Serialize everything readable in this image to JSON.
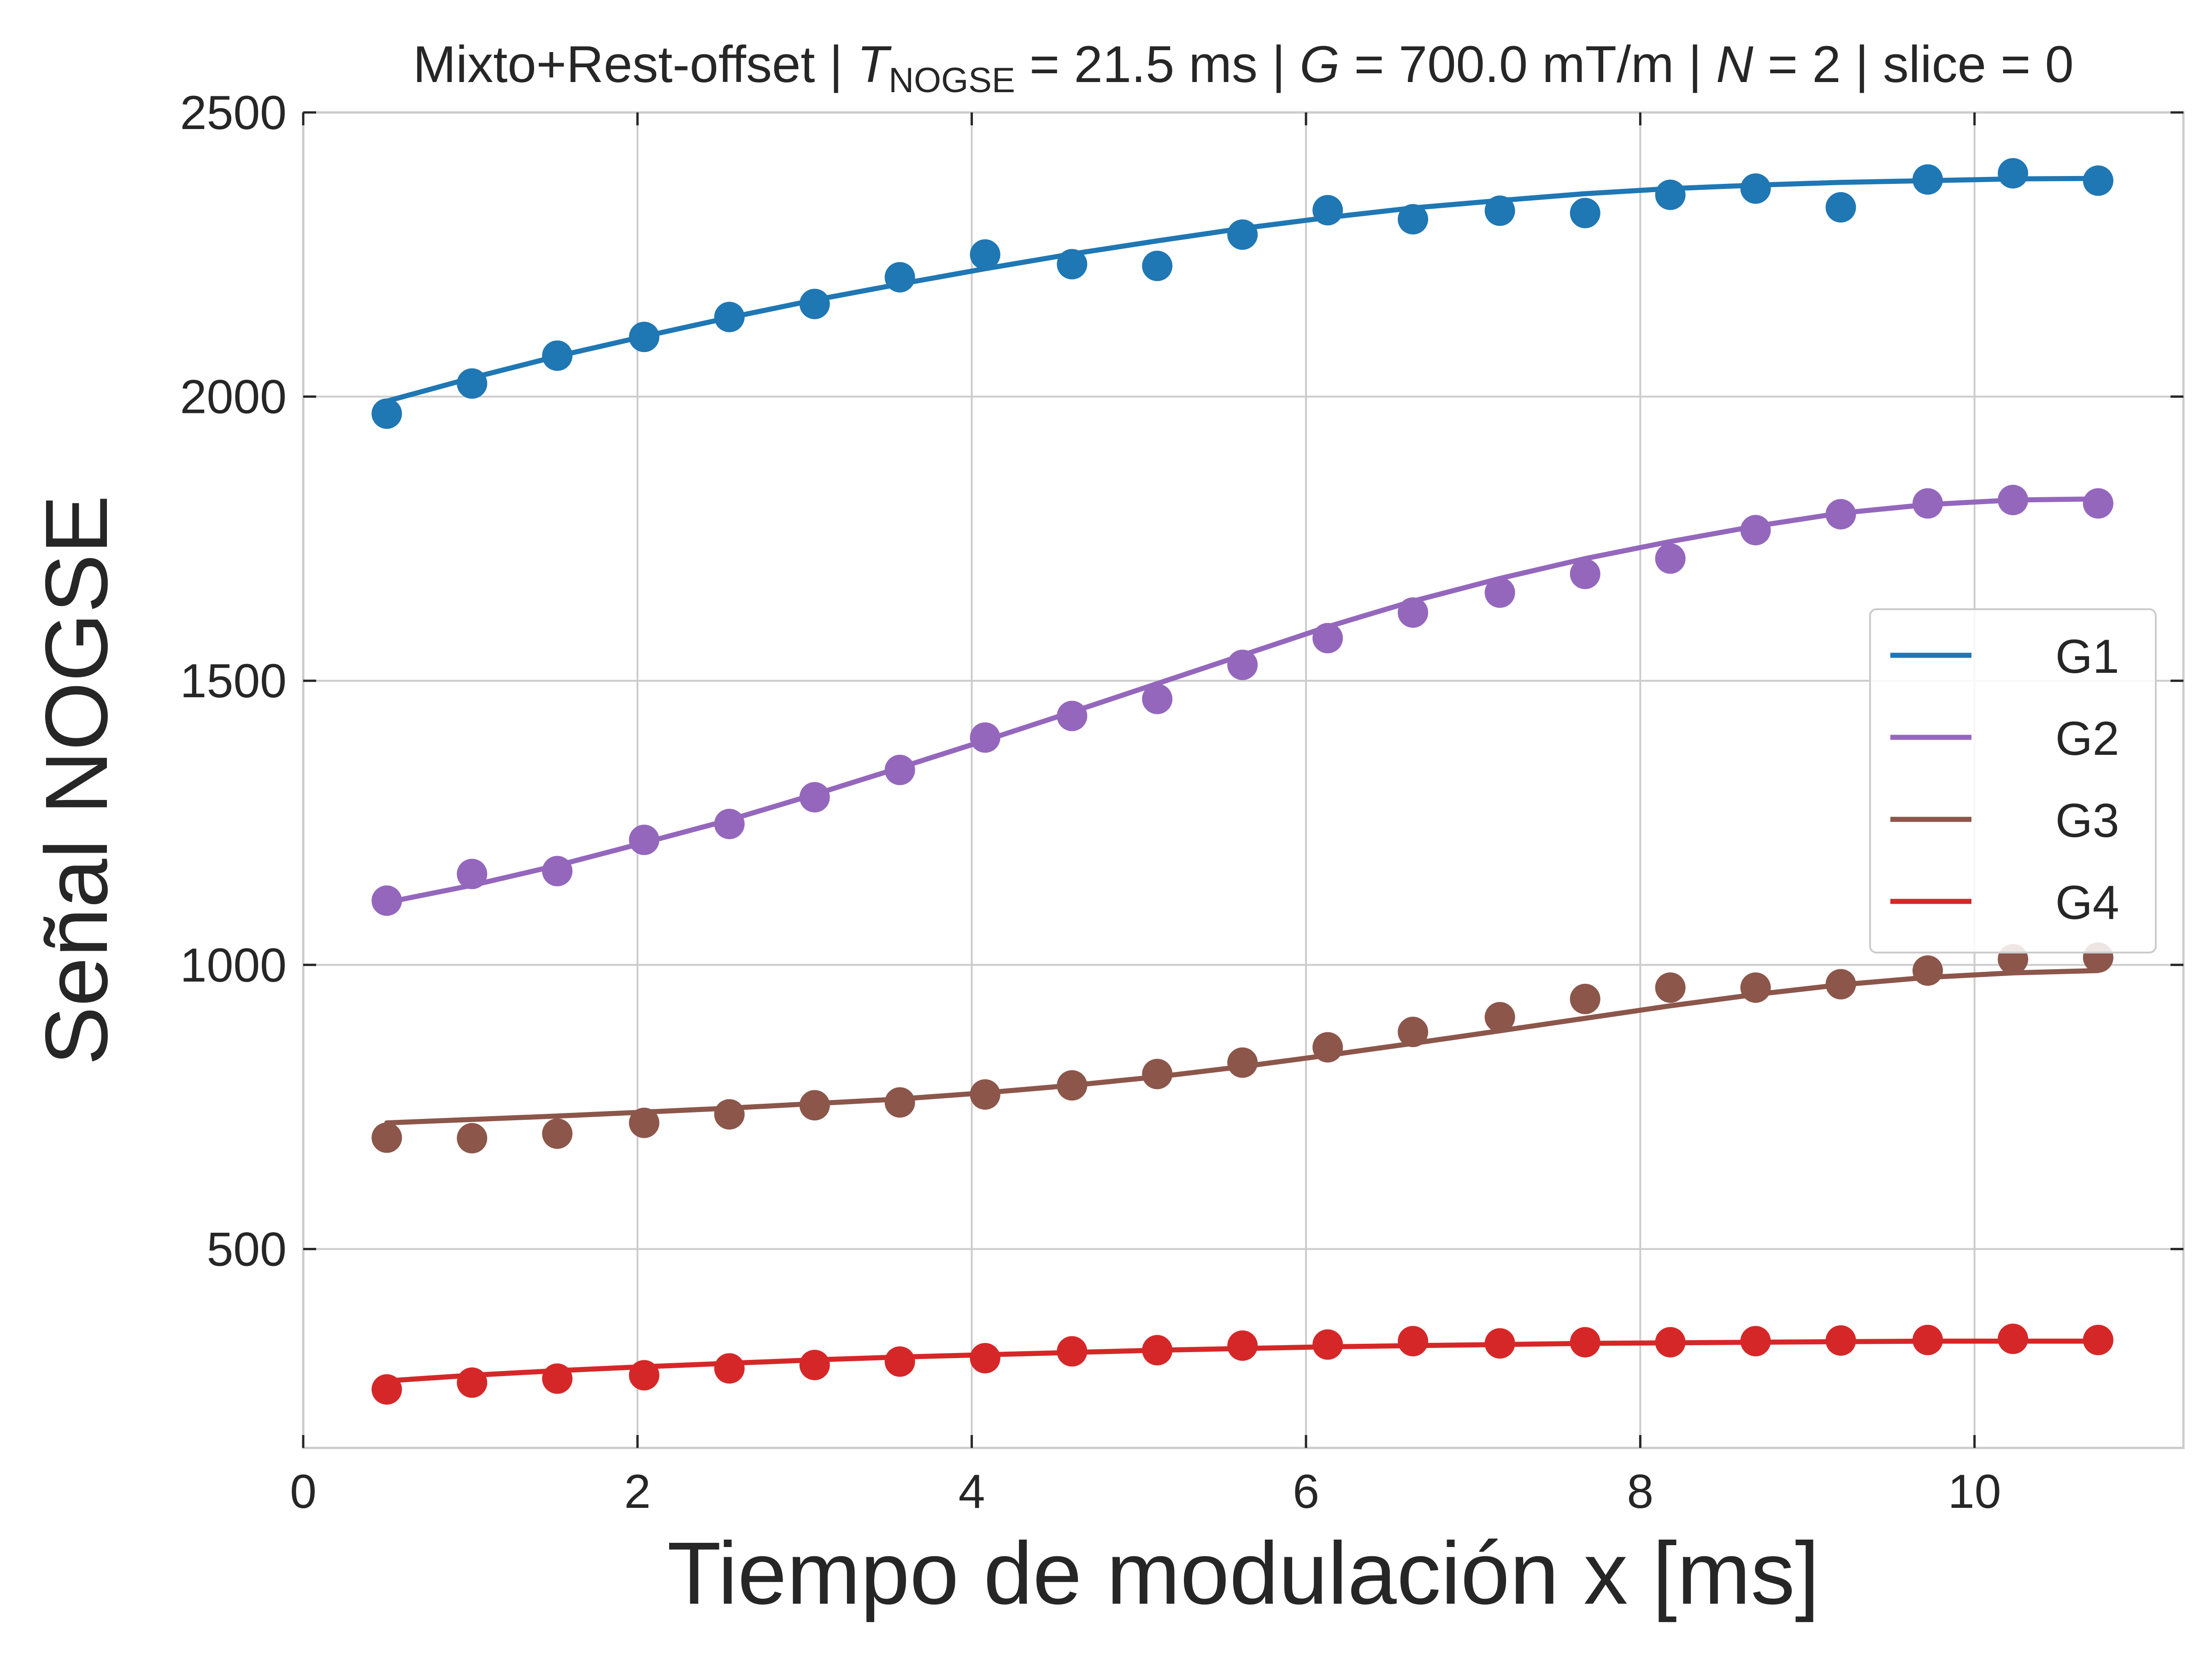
{
  "chart_data": {
    "type": "scatter",
    "title": {
      "prefix": "Mixto+Rest-offset | ",
      "t_symbol": "T",
      "t_subscript": "NOGSE",
      "t_value": " = 21.5 ms | ",
      "g_symbol": "G",
      "g_value": " = 700.0 mT/m | ",
      "n_symbol": "N",
      "n_value": " = 2 | slice = 0"
    },
    "xlabel": "Tiempo de modulación x [ms]",
    "ylabel": "Señal NOGSE",
    "xlim": [
      0,
      11.25
    ],
    "ylim": [
      150,
      2500
    ],
    "xticks": [
      0,
      2,
      4,
      6,
      8,
      10
    ],
    "yticks": [
      500,
      1000,
      1500,
      2000,
      2500
    ],
    "grid": true,
    "legend_position": "center-right",
    "x": [
      0.5,
      1.01,
      1.52,
      2.04,
      2.55,
      3.06,
      3.57,
      4.08,
      4.6,
      5.11,
      5.62,
      6.13,
      6.64,
      7.16,
      7.67,
      8.18,
      8.69,
      9.2,
      9.72,
      10.23,
      10.74
    ],
    "series": [
      {
        "name": "G1",
        "color": "#1f77b4",
        "points": [
          1970,
          2023,
          2072,
          2105,
          2140,
          2163,
          2210,
          2250,
          2233,
          2230,
          2285,
          2328,
          2312,
          2327,
          2323,
          2355,
          2366,
          2333,
          2382,
          2393,
          2380
        ],
        "fit": [
          1992,
          2033,
          2071,
          2106,
          2139,
          2170,
          2198,
          2225,
          2251,
          2274,
          2296,
          2315,
          2332,
          2345,
          2357,
          2366,
          2372,
          2377,
          2380,
          2383,
          2384
        ]
      },
      {
        "name": "G2",
        "color": "#9467bd",
        "points": [
          1113,
          1160,
          1165,
          1220,
          1248,
          1295,
          1343,
          1400,
          1438,
          1468,
          1528,
          1575,
          1620,
          1655,
          1688,
          1715,
          1765,
          1793,
          1812,
          1818,
          1812
        ],
        "fit": [
          1110,
          1140,
          1175,
          1215,
          1255,
          1300,
          1347,
          1395,
          1445,
          1495,
          1545,
          1595,
          1640,
          1680,
          1715,
          1745,
          1772,
          1795,
          1810,
          1818,
          1820
        ]
      },
      {
        "name": "G3",
        "color": "#8c564b",
        "points": [
          696,
          695,
          703,
          722,
          737,
          753,
          758,
          772,
          788,
          808,
          828,
          855,
          882,
          908,
          940,
          960,
          960,
          966,
          990,
          1010,
          1013
        ],
        "fit": [
          722,
          728,
          734,
          741,
          748,
          756,
          764,
          775,
          788,
          803,
          821,
          841,
          862,
          884,
          906,
          928,
          948,
          965,
          978,
          986,
          990
        ]
      },
      {
        "name": "G4",
        "color": "#d62728",
        "points": [
          253,
          265,
          272,
          278,
          290,
          296,
          302,
          308,
          320,
          322,
          330,
          332,
          338,
          334,
          336,
          336,
          338,
          339,
          340,
          342,
          340
        ],
        "fit": [
          268,
          278,
          286,
          293,
          299,
          305,
          310,
          314,
          318,
          322,
          325,
          328,
          330,
          332,
          334,
          335,
          336,
          337,
          338,
          338,
          338
        ]
      }
    ]
  }
}
